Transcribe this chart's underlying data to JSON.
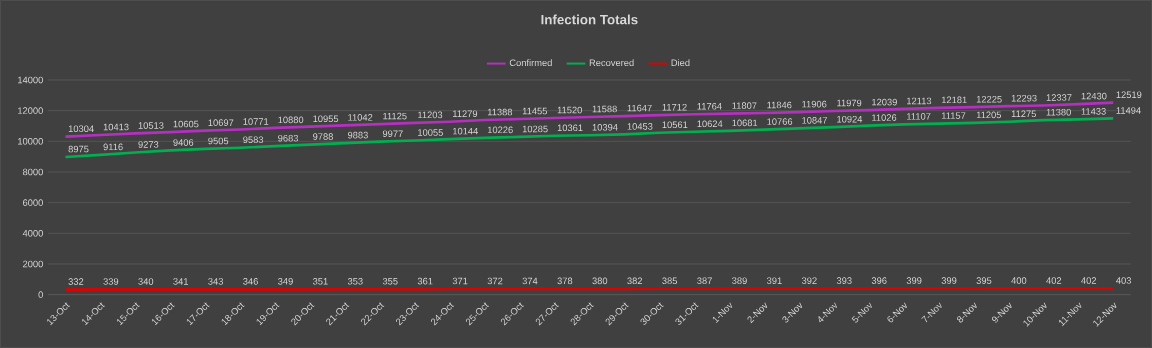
{
  "chart_data": {
    "type": "line",
    "title": "Infection Totals",
    "categories": [
      "13-Oct",
      "14-Oct",
      "15-Oct",
      "16-Oct",
      "17-Oct",
      "18-Oct",
      "19-Oct",
      "20-Oct",
      "21-Oct",
      "22-Oct",
      "23-Oct",
      "24-Oct",
      "25-Oct",
      "26-Oct",
      "27-Oct",
      "28-Oct",
      "29-Oct",
      "30-Oct",
      "31-Oct",
      "1-Nov",
      "2-Nov",
      "3-Nov",
      "4-Nov",
      "5-Nov",
      "6-Nov",
      "7-Nov",
      "8-Nov",
      "9-Nov",
      "10-Nov",
      "11-Nov",
      "12-Nov"
    ],
    "series": [
      {
        "name": "Confirmed",
        "color": "#b530c0",
        "values": [
          10304,
          10413,
          10513,
          10605,
          10697,
          10771,
          10880,
          10955,
          11042,
          11125,
          11203,
          11279,
          11388,
          11455,
          11520,
          11588,
          11647,
          11712,
          11764,
          11807,
          11846,
          11906,
          11979,
          12039,
          12113,
          12181,
          12225,
          12293,
          12337,
          12430,
          12519
        ]
      },
      {
        "name": "Recovered",
        "color": "#00b050",
        "values": [
          8975,
          9116,
          9273,
          9406,
          9505,
          9583,
          9683,
          9788,
          9883,
          9977,
          10055,
          10144,
          10226,
          10285,
          10361,
          10394,
          10453,
          10561,
          10624,
          10681,
          10766,
          10847,
          10924,
          11026,
          11107,
          11157,
          11205,
          11275,
          11380,
          11433,
          11494
        ]
      },
      {
        "name": "Died",
        "color": "#e00000",
        "values": [
          332,
          339,
          340,
          341,
          343,
          346,
          349,
          351,
          353,
          355,
          361,
          371,
          372,
          374,
          378,
          380,
          382,
          385,
          387,
          389,
          391,
          392,
          393,
          396,
          399,
          399,
          395,
          400,
          402,
          402,
          403
        ]
      }
    ],
    "ylim": [
      0,
      14000
    ],
    "yticks": [
      0,
      2000,
      4000,
      6000,
      8000,
      10000,
      12000,
      14000
    ],
    "grid": "y",
    "legend": "top",
    "data_labels": true,
    "marker": "none",
    "line_style": "solid"
  }
}
